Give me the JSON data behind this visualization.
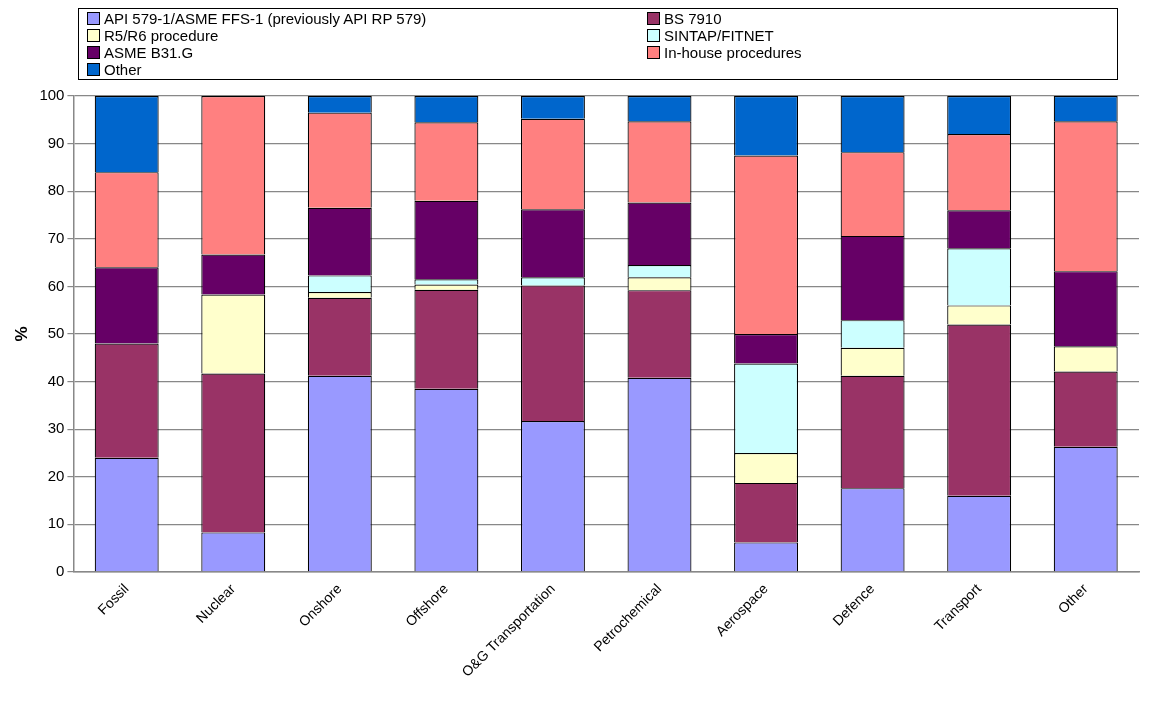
{
  "chart_data": {
    "type": "bar",
    "stacked": true,
    "ylabel": "%",
    "legend": "top",
    "grid": "y",
    "categories": [
      "Fossil",
      "Nuclear",
      "Onshore",
      "Offshore",
      "O&G Transportation",
      "Petrochemical",
      "Aerospace",
      "Defence",
      "Transport",
      "Other"
    ],
    "ylim": [
      0,
      100
    ],
    "yticks": [
      0,
      10,
      20,
      30,
      40,
      50,
      60,
      70,
      80,
      90,
      100
    ],
    "series": [
      {
        "name": "API 579-1/ASME FFS-1 (previously API RP 579)",
        "color": "#9999ff",
        "values": [
          24,
          8.3,
          41.2,
          38.5,
          31.7,
          40.8,
          6.2,
          17.6,
          16,
          26.3
        ]
      },
      {
        "name": "BS 7910",
        "color": "#993366",
        "values": [
          24,
          33.4,
          16.4,
          20.8,
          28.5,
          18.4,
          12.5,
          23.6,
          36,
          15.8
        ]
      },
      {
        "name": "R5/R6 procedure",
        "color": "#ffffcc",
        "values": [
          0,
          16.6,
          1.2,
          1.1,
          0,
          2.7,
          6.3,
          5.9,
          4,
          5.3
        ]
      },
      {
        "name": "SINTAP/FITNET",
        "color": "#ccffff",
        "values": [
          0,
          0,
          3.5,
          1.1,
          1.7,
          2.6,
          18.8,
          5.8,
          12,
          0
        ]
      },
      {
        "name": "ASME B31.G",
        "color": "#660066",
        "values": [
          16,
          8.4,
          14.2,
          16.5,
          14.3,
          13.1,
          6.2,
          17.7,
          8,
          15.8
        ]
      },
      {
        "name": "In-house procedures",
        "color": "#ff8080",
        "values": [
          20,
          33.3,
          20,
          16.5,
          19,
          17.1,
          37.5,
          17.6,
          16,
          31.5
        ]
      },
      {
        "name": "Other",
        "color": "#0066cc",
        "values": [
          16,
          0,
          3.5,
          5.5,
          4.8,
          5.3,
          12.5,
          11.8,
          8,
          5.3
        ]
      }
    ]
  }
}
